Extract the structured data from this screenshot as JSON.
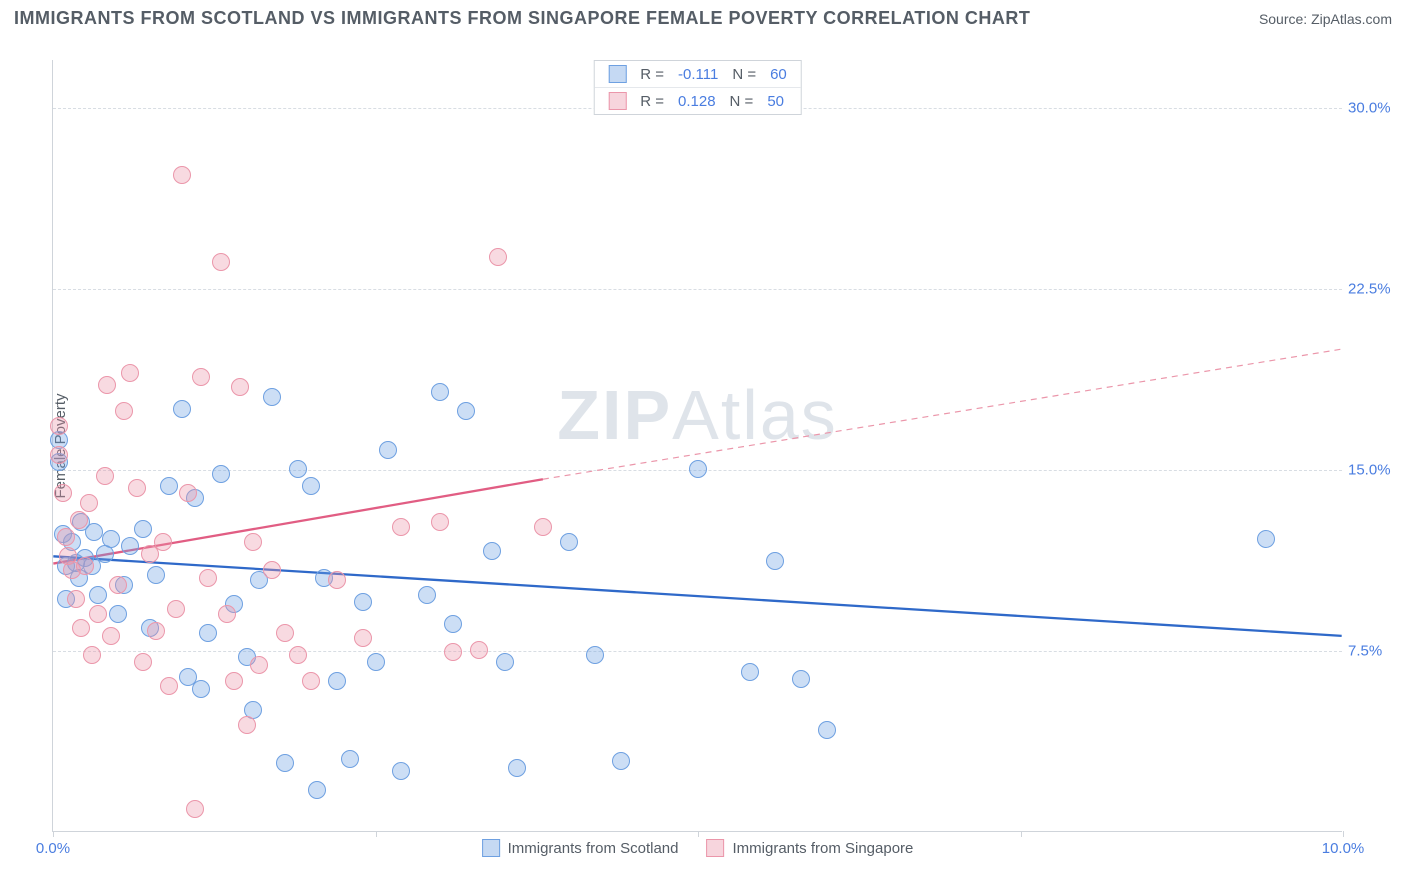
{
  "title": "IMMIGRANTS FROM SCOTLAND VS IMMIGRANTS FROM SINGAPORE FEMALE POVERTY CORRELATION CHART",
  "source": "Source: ZipAtlas.com",
  "y_axis_label": "Female Poverty",
  "watermark_a": "ZIP",
  "watermark_b": "Atlas",
  "chart": {
    "type": "scatter",
    "xlim": [
      0,
      10
    ],
    "ylim": [
      0,
      32
    ],
    "x_ticks": [
      0,
      2.5,
      5,
      7.5,
      10
    ],
    "x_tick_labels": [
      "0.0%",
      "",
      "",
      "",
      "10.0%"
    ],
    "y_ticks": [
      7.5,
      15.0,
      22.5,
      30.0
    ],
    "y_tick_labels": [
      "7.5%",
      "15.0%",
      "22.5%",
      "30.0%"
    ],
    "background_color": "#ffffff",
    "grid_color": "#d8dde3",
    "series": [
      {
        "name": "Immigrants from Scotland",
        "color": "#6ea0e1",
        "fill": "rgba(110,160,225,0.35)",
        "R": "-0.111",
        "N": "60",
        "marker_radius": 9,
        "trend": {
          "x1": 0,
          "y1": 11.4,
          "x2": 10,
          "y2": 8.1,
          "dash": false,
          "color": "#2f69c9",
          "width": 2.3
        },
        "points": [
          [
            0.05,
            16.2
          ],
          [
            0.05,
            15.3
          ],
          [
            0.08,
            12.3
          ],
          [
            0.1,
            11.0
          ],
          [
            0.1,
            9.6
          ],
          [
            0.15,
            12.0
          ],
          [
            0.18,
            11.1
          ],
          [
            0.2,
            10.5
          ],
          [
            0.22,
            12.8
          ],
          [
            0.25,
            11.3
          ],
          [
            0.3,
            11.0
          ],
          [
            0.32,
            12.4
          ],
          [
            0.35,
            9.8
          ],
          [
            0.4,
            11.5
          ],
          [
            0.45,
            12.1
          ],
          [
            0.5,
            9.0
          ],
          [
            0.55,
            10.2
          ],
          [
            0.6,
            11.8
          ],
          [
            0.7,
            12.5
          ],
          [
            0.75,
            8.4
          ],
          [
            0.8,
            10.6
          ],
          [
            0.9,
            14.3
          ],
          [
            1.0,
            17.5
          ],
          [
            1.05,
            6.4
          ],
          [
            1.1,
            13.8
          ],
          [
            1.15,
            5.9
          ],
          [
            1.2,
            8.2
          ],
          [
            1.3,
            14.8
          ],
          [
            1.4,
            9.4
          ],
          [
            1.5,
            7.2
          ],
          [
            1.55,
            5.0
          ],
          [
            1.6,
            10.4
          ],
          [
            1.7,
            18.0
          ],
          [
            1.8,
            2.8
          ],
          [
            1.9,
            15.0
          ],
          [
            2.0,
            14.3
          ],
          [
            2.05,
            1.7
          ],
          [
            2.1,
            10.5
          ],
          [
            2.2,
            6.2
          ],
          [
            2.3,
            3.0
          ],
          [
            2.4,
            9.5
          ],
          [
            2.5,
            7.0
          ],
          [
            2.6,
            15.8
          ],
          [
            2.7,
            2.5
          ],
          [
            2.9,
            9.8
          ],
          [
            3.0,
            18.2
          ],
          [
            3.1,
            8.6
          ],
          [
            3.2,
            17.4
          ],
          [
            3.4,
            11.6
          ],
          [
            3.5,
            7.0
          ],
          [
            3.6,
            2.6
          ],
          [
            4.0,
            12.0
          ],
          [
            4.2,
            7.3
          ],
          [
            4.4,
            2.9
          ],
          [
            5.0,
            15.0
          ],
          [
            5.4,
            6.6
          ],
          [
            5.6,
            11.2
          ],
          [
            5.8,
            6.3
          ],
          [
            6.0,
            4.2
          ],
          [
            9.4,
            12.1
          ]
        ]
      },
      {
        "name": "Immigrants from Singapore",
        "color": "#eb96aa",
        "fill": "rgba(235,150,170,0.35)",
        "R": "0.128",
        "N": "50",
        "marker_radius": 9,
        "trend_solid": {
          "x1": 0,
          "y1": 11.1,
          "x2": 3.8,
          "y2": 14.6,
          "color": "#e15d83",
          "width": 2.3
        },
        "trend_dash": {
          "x1": 3.8,
          "y1": 14.6,
          "x2": 10,
          "y2": 20.0,
          "color": "#eb96aa",
          "width": 1.2
        },
        "points": [
          [
            0.05,
            16.8
          ],
          [
            0.05,
            15.6
          ],
          [
            0.08,
            14.0
          ],
          [
            0.1,
            12.2
          ],
          [
            0.12,
            11.4
          ],
          [
            0.15,
            10.8
          ],
          [
            0.18,
            9.6
          ],
          [
            0.2,
            12.9
          ],
          [
            0.22,
            8.4
          ],
          [
            0.25,
            11.0
          ],
          [
            0.28,
            13.6
          ],
          [
            0.3,
            7.3
          ],
          [
            0.35,
            9.0
          ],
          [
            0.4,
            14.7
          ],
          [
            0.42,
            18.5
          ],
          [
            0.45,
            8.1
          ],
          [
            0.5,
            10.2
          ],
          [
            0.55,
            17.4
          ],
          [
            0.6,
            19.0
          ],
          [
            0.65,
            14.2
          ],
          [
            0.7,
            7.0
          ],
          [
            0.75,
            11.5
          ],
          [
            0.8,
            8.3
          ],
          [
            0.85,
            12.0
          ],
          [
            0.9,
            6.0
          ],
          [
            0.95,
            9.2
          ],
          [
            1.0,
            27.2
          ],
          [
            1.05,
            14.0
          ],
          [
            1.1,
            0.9
          ],
          [
            1.15,
            18.8
          ],
          [
            1.2,
            10.5
          ],
          [
            1.3,
            23.6
          ],
          [
            1.35,
            9.0
          ],
          [
            1.4,
            6.2
          ],
          [
            1.45,
            18.4
          ],
          [
            1.5,
            4.4
          ],
          [
            1.55,
            12.0
          ],
          [
            1.6,
            6.9
          ],
          [
            1.7,
            10.8
          ],
          [
            1.8,
            8.2
          ],
          [
            1.9,
            7.3
          ],
          [
            2.0,
            6.2
          ],
          [
            2.2,
            10.4
          ],
          [
            2.4,
            8.0
          ],
          [
            2.7,
            12.6
          ],
          [
            3.0,
            12.8
          ],
          [
            3.1,
            7.4
          ],
          [
            3.3,
            7.5
          ],
          [
            3.45,
            23.8
          ],
          [
            3.8,
            12.6
          ]
        ]
      }
    ]
  },
  "legend_top": {
    "r_label": "R =",
    "n_label": "N ="
  },
  "legend_bottom_labels": [
    "Immigrants from Scotland",
    "Immigrants from Singapore"
  ]
}
